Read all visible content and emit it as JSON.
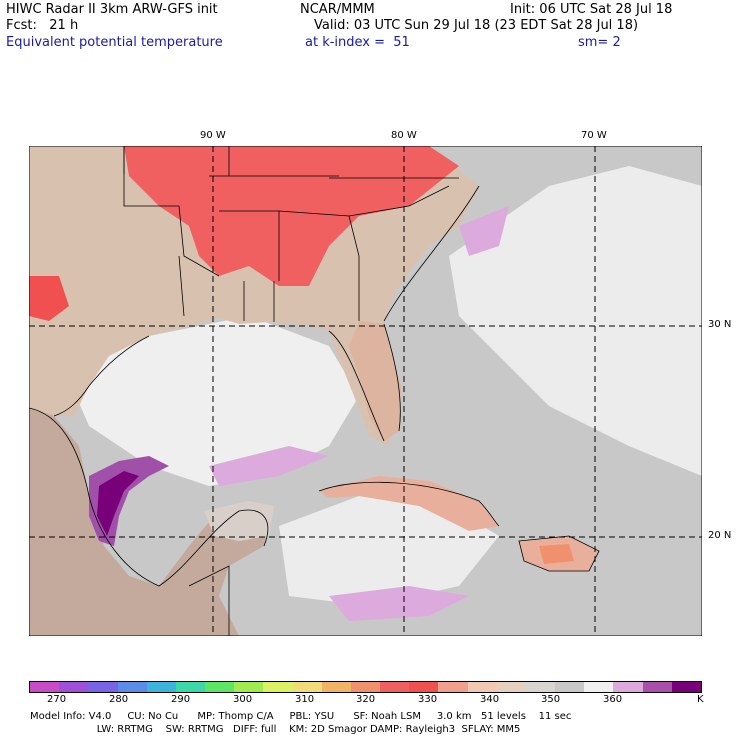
{
  "header": {
    "title": "HIWC Radar II 3km ARW-GFS init",
    "agency": "NCAR/MMM",
    "init": "Init: 06 UTC Sat 28 Jul 18",
    "fcst": "Fcst:   21 h",
    "valid": "Valid: 03 UTC Sun 29 Jul 18 (23 EDT Sat 28 Jul 18)",
    "field": "Equivalent potential temperature",
    "level": "at k-index =  51",
    "smooth": "sm= 2"
  },
  "map": {
    "lon_labels": [
      "90 W",
      "80 W",
      "70 W"
    ],
    "lat_labels": [
      "30 N",
      "20 N"
    ],
    "ocean_color": "#c8c8c8",
    "warm_color": "#f05050"
  },
  "colorbar": {
    "colors": [
      "#c84cc8",
      "#a050d8",
      "#7a64e6",
      "#5a8ce8",
      "#3cb4dc",
      "#3cd8a8",
      "#5ce664",
      "#a0ec50",
      "#dcf064",
      "#f0dc78",
      "#f0b464",
      "#f0906c",
      "#f06060",
      "#f05050",
      "#f0a08c",
      "#f0c8b4",
      "#e6d0c0",
      "#d8d4d0",
      "#c8c8c8",
      "#f0f0f0",
      "#dcaadc",
      "#aa50aa",
      "#780078"
    ],
    "labels": [
      "270",
      "280",
      "290",
      "300",
      "310",
      "320",
      "330",
      "340",
      "350",
      "360"
    ],
    "unit": "K"
  },
  "footer": {
    "line1": "Model Info: V4.0     CU: No Cu      MP: Thomp C/A     PBL: YSU      SF: Noah LSM     3.0 km   51 levels    11 sec",
    "line2": "                     LW: RRTMG    SW: RRTMG   DIFF: full    KM: 2D Smagor DAMP: Rayleigh3  SFLAY: MM5"
  }
}
